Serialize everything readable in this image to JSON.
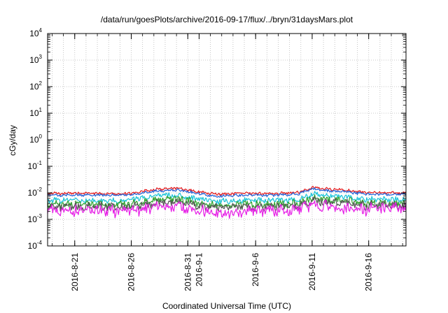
{
  "chart_data": {
    "type": "line",
    "title": "/data/run/goesPlots/archive/2016-09-17/flux/../bryn/31daysMars.plot",
    "xlabel": "Coordinated Universal Time (UTC)",
    "ylabel": "cGy/day",
    "yscale": "log",
    "ylim": [
      0.0001,
      10000
    ],
    "xlim": [
      -2.4,
      29.3
    ],
    "x_unit": "days since 2016-08-21",
    "grid": true,
    "legend": "none",
    "y_ticks": [
      {
        "value": 0.0001,
        "base": "10",
        "exp": "-4"
      },
      {
        "value": 0.001,
        "base": "10",
        "exp": "-3"
      },
      {
        "value": 0.01,
        "base": "10",
        "exp": "-2"
      },
      {
        "value": 0.1,
        "base": "10",
        "exp": "-1"
      },
      {
        "value": 1,
        "base": "10",
        "exp": "0"
      },
      {
        "value": 10,
        "base": "10",
        "exp": "1"
      },
      {
        "value": 100,
        "base": "10",
        "exp": "2"
      },
      {
        "value": 1000,
        "base": "10",
        "exp": "3"
      },
      {
        "value": 10000,
        "base": "10",
        "exp": "4"
      }
    ],
    "x_ticks": [
      {
        "value": 0,
        "label": "2016-8-21"
      },
      {
        "value": 5,
        "label": "2016-8-26"
      },
      {
        "value": 10,
        "label": "2016-8-31"
      },
      {
        "value": 11,
        "label": "2016-9-1"
      },
      {
        "value": 16,
        "label": "2016-9-6"
      },
      {
        "value": 21,
        "label": "2016-9-11"
      },
      {
        "value": 26,
        "label": "2016-9-16"
      }
    ],
    "series": [
      {
        "name": "red",
        "color": "#e41a1c",
        "x": [
          -2.4,
          -1,
          0,
          1,
          2,
          3,
          4,
          5,
          6,
          7,
          8,
          9,
          10,
          11,
          12,
          13,
          14,
          15,
          16,
          17,
          18,
          19,
          20,
          21,
          22,
          23,
          24,
          25,
          26,
          27,
          28,
          29,
          29.3
        ],
        "values": [
          0.0095,
          0.0095,
          0.0095,
          0.0096,
          0.0096,
          0.0094,
          0.0093,
          0.0097,
          0.0115,
          0.0132,
          0.0145,
          0.0148,
          0.0128,
          0.0108,
          0.0094,
          0.0088,
          0.0092,
          0.0096,
          0.0095,
          0.0094,
          0.0096,
          0.0098,
          0.0112,
          0.0165,
          0.0142,
          0.0135,
          0.0128,
          0.011,
          0.0104,
          0.0102,
          0.01,
          0.01,
          0.01
        ]
      },
      {
        "name": "blue",
        "color": "#1f5fd6",
        "x": [
          -2.4,
          -1,
          0,
          1,
          2,
          3,
          4,
          5,
          6,
          7,
          8,
          9,
          10,
          11,
          12,
          13,
          14,
          15,
          16,
          17,
          18,
          19,
          20,
          21,
          22,
          23,
          24,
          25,
          26,
          27,
          28,
          29,
          29.3
        ],
        "values": [
          0.0082,
          0.0082,
          0.0082,
          0.0083,
          0.0083,
          0.0081,
          0.008,
          0.0084,
          0.0099,
          0.0114,
          0.0125,
          0.0127,
          0.011,
          0.0093,
          0.0081,
          0.0076,
          0.0079,
          0.0083,
          0.0082,
          0.0081,
          0.0083,
          0.0085,
          0.0097,
          0.0141,
          0.0122,
          0.0116,
          0.011,
          0.0095,
          0.009,
          0.0088,
          0.0086,
          0.0086,
          0.0086
        ]
      },
      {
        "name": "cyan",
        "color": "#19c3d8",
        "x": [
          -2.4,
          -1,
          0,
          1,
          2,
          3,
          4,
          5,
          6,
          7,
          8,
          9,
          10,
          11,
          12,
          13,
          14,
          15,
          16,
          17,
          18,
          19,
          20,
          21,
          22,
          23,
          24,
          25,
          26,
          27,
          28,
          29,
          29.3
        ],
        "values": [
          0.0052,
          0.0052,
          0.0052,
          0.0053,
          0.0053,
          0.0051,
          0.005,
          0.0054,
          0.0064,
          0.0074,
          0.0081,
          0.0082,
          0.0071,
          0.006,
          0.0052,
          0.0048,
          0.005,
          0.0053,
          0.0052,
          0.0051,
          0.0053,
          0.0054,
          0.0062,
          0.0092,
          0.0079,
          0.0075,
          0.0071,
          0.0061,
          0.0057,
          0.0056,
          0.0055,
          0.0055,
          0.0055
        ]
      },
      {
        "name": "green",
        "color": "#2ca02c",
        "x": [
          -2.4,
          -1,
          0,
          1,
          2,
          3,
          4,
          5,
          6,
          7,
          8,
          9,
          10,
          11,
          12,
          13,
          14,
          15,
          16,
          17,
          18,
          19,
          20,
          21,
          22,
          23,
          24,
          25,
          26,
          27,
          28,
          29,
          29.3
        ],
        "values": [
          0.0037,
          0.0037,
          0.0037,
          0.0038,
          0.0038,
          0.0036,
          0.0036,
          0.0038,
          0.0045,
          0.0052,
          0.0057,
          0.0058,
          0.005,
          0.0042,
          0.0037,
          0.0034,
          0.0036,
          0.0038,
          0.0037,
          0.0036,
          0.0038,
          0.0039,
          0.0044,
          0.0065,
          0.0056,
          0.0053,
          0.005,
          0.0043,
          0.0041,
          0.004,
          0.0039,
          0.0039,
          0.0039
        ]
      },
      {
        "name": "dark",
        "color": "#555555",
        "x": [
          -2.4,
          -1,
          0,
          1,
          2,
          3,
          4,
          5,
          6,
          7,
          8,
          9,
          10,
          11,
          12,
          13,
          14,
          15,
          16,
          17,
          18,
          19,
          20,
          21,
          22,
          23,
          24,
          25,
          26,
          27,
          28,
          29,
          29.3
        ],
        "values": [
          0.003,
          0.003,
          0.003,
          0.0031,
          0.0031,
          0.0029,
          0.0029,
          0.0031,
          0.0036,
          0.0042,
          0.0046,
          0.0047,
          0.0041,
          0.0034,
          0.003,
          0.0028,
          0.0029,
          0.0031,
          0.003,
          0.0029,
          0.0031,
          0.0031,
          0.0036,
          0.0053,
          0.0045,
          0.0043,
          0.0041,
          0.0035,
          0.0033,
          0.0032,
          0.0032,
          0.0032,
          0.0032
        ]
      },
      {
        "name": "magenta",
        "color": "#e61ee6",
        "x": [
          -2.4,
          -1,
          0,
          1,
          2,
          3,
          4,
          5,
          6,
          7,
          8,
          9,
          10,
          11,
          12,
          13,
          14,
          15,
          16,
          17,
          18,
          19,
          20,
          21,
          22,
          23,
          24,
          25,
          26,
          27,
          28,
          29,
          29.3
        ],
        "values": [
          0.0024,
          0.0023,
          0.0021,
          0.0022,
          0.0022,
          0.002,
          0.0019,
          0.0021,
          0.0024,
          0.0027,
          0.003,
          0.0031,
          0.0026,
          0.0022,
          0.0018,
          0.0016,
          0.0018,
          0.0021,
          0.0022,
          0.002,
          0.0021,
          0.0021,
          0.0024,
          0.0036,
          0.0031,
          0.0029,
          0.0027,
          0.0024,
          0.0024,
          0.0025,
          0.0026,
          0.0027,
          0.0027
        ]
      }
    ]
  }
}
